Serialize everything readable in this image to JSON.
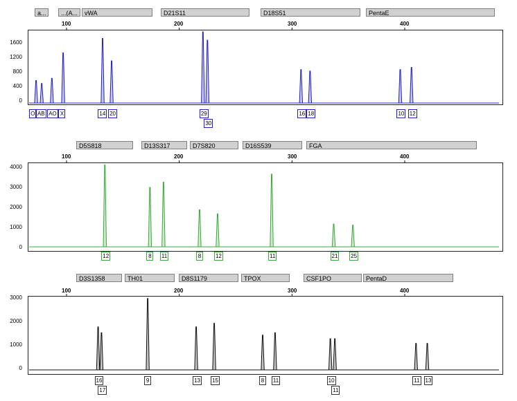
{
  "chart_data": [
    {
      "type": "line",
      "panel": "blue",
      "color": "#2020c0",
      "markers": [
        {
          "label": "a..."
        },
        {
          "label": "...(A..."
        },
        {
          "label": "vWA"
        },
        {
          "label": "D21S11"
        },
        {
          "label": "D18S51"
        },
        {
          "label": "PentaE"
        }
      ],
      "x_ticks": [
        "100",
        "200",
        "300",
        "400"
      ],
      "y_ticks": [
        "1600",
        "1200",
        "800",
        "400",
        "0"
      ],
      "ylim": [
        0,
        2000
      ],
      "xlim": [
        60,
        450
      ],
      "peaks": [
        {
          "x": 73,
          "y": 640
        },
        {
          "x": 78,
          "y": 560
        },
        {
          "x": 87,
          "y": 700
        },
        {
          "x": 97,
          "y": 1400
        },
        {
          "x": 132,
          "y": 1800
        },
        {
          "x": 140,
          "y": 1180
        },
        {
          "x": 221,
          "y": 1980
        },
        {
          "x": 225,
          "y": 1750
        },
        {
          "x": 308,
          "y": 940
        },
        {
          "x": 316,
          "y": 900
        },
        {
          "x": 396,
          "y": 940
        },
        {
          "x": 406,
          "y": 1000
        }
      ],
      "alleles": [
        {
          "label": "O",
          "x": 70,
          "row": 0
        },
        {
          "label": "AB",
          "x": 76,
          "row": 0
        },
        {
          "label": "AO",
          "x": 86,
          "row": 0
        },
        {
          "label": "X",
          "x": 96,
          "row": 0
        },
        {
          "label": "14",
          "x": 131,
          "row": 0
        },
        {
          "label": "20",
          "x": 140,
          "row": 0
        },
        {
          "label": "29",
          "x": 221,
          "row": 0
        },
        {
          "label": "30",
          "x": 225,
          "row": 1
        },
        {
          "label": "16",
          "x": 308,
          "row": 0
        },
        {
          "label": "18",
          "x": 316,
          "row": 0
        },
        {
          "label": "10",
          "x": 396,
          "row": 0
        },
        {
          "label": "12",
          "x": 406,
          "row": 0
        }
      ]
    },
    {
      "type": "line",
      "panel": "green",
      "color": "#3aa83a",
      "markers": [
        {
          "label": "D5S818"
        },
        {
          "label": "D13S317"
        },
        {
          "label": "D7S820"
        },
        {
          "label": "D16S539"
        },
        {
          "label": "FGA"
        }
      ],
      "x_ticks": [
        "100",
        "200",
        "300",
        "400"
      ],
      "y_ticks": [
        "4000",
        "3000",
        "2000",
        "1000",
        "0"
      ],
      "ylim": [
        0,
        4100
      ],
      "xlim": [
        60,
        450
      ],
      "peaks": [
        {
          "x": 134,
          "y": 4050
        },
        {
          "x": 174,
          "y": 2950
        },
        {
          "x": 186,
          "y": 3200
        },
        {
          "x": 218,
          "y": 1850
        },
        {
          "x": 234,
          "y": 1650
        },
        {
          "x": 282,
          "y": 3600
        },
        {
          "x": 337,
          "y": 1150
        },
        {
          "x": 354,
          "y": 1100
        }
      ],
      "alleles": [
        {
          "label": "12",
          "x": 134,
          "row": 0
        },
        {
          "label": "8",
          "x": 174,
          "row": 0
        },
        {
          "label": "11",
          "x": 186,
          "row": 0
        },
        {
          "label": "8",
          "x": 218,
          "row": 0
        },
        {
          "label": "12",
          "x": 234,
          "row": 0
        },
        {
          "label": "11",
          "x": 282,
          "row": 0
        },
        {
          "label": "21",
          "x": 337,
          "row": 0
        },
        {
          "label": "25",
          "x": 354,
          "row": 0
        }
      ]
    },
    {
      "type": "line",
      "panel": "black",
      "color": "#101010",
      "markers": [
        {
          "label": "D3S1358"
        },
        {
          "label": "TH01"
        },
        {
          "label": "D8S1179"
        },
        {
          "label": "TPOX"
        },
        {
          "label": "CSF1PO"
        },
        {
          "label": "PentaD"
        }
      ],
      "x_ticks": [
        "100",
        "200",
        "300",
        "400"
      ],
      "y_ticks": [
        "3000",
        "2000",
        "1000",
        "0"
      ],
      "ylim": [
        0,
        3100
      ],
      "xlim": [
        60,
        450
      ],
      "peaks": [
        {
          "x": 128,
          "y": 1850
        },
        {
          "x": 131,
          "y": 1600
        },
        {
          "x": 172,
          "y": 3050
        },
        {
          "x": 215,
          "y": 1850
        },
        {
          "x": 231,
          "y": 2000
        },
        {
          "x": 274,
          "y": 1500
        },
        {
          "x": 285,
          "y": 1600
        },
        {
          "x": 334,
          "y": 1350
        },
        {
          "x": 338,
          "y": 1350
        },
        {
          "x": 410,
          "y": 1150
        },
        {
          "x": 420,
          "y": 1150
        }
      ],
      "alleles": [
        {
          "label": "16",
          "x": 128,
          "row": 0
        },
        {
          "label": "17",
          "x": 131,
          "row": 1
        },
        {
          "label": "9",
          "x": 172,
          "row": 0
        },
        {
          "label": "13",
          "x": 215,
          "row": 0
        },
        {
          "label": "15",
          "x": 231,
          "row": 0
        },
        {
          "label": "8",
          "x": 274,
          "row": 0
        },
        {
          "label": "11",
          "x": 285,
          "row": 0
        },
        {
          "label": "10",
          "x": 334,
          "row": 0
        },
        {
          "label": "11",
          "x": 338,
          "row": 1
        },
        {
          "label": "11",
          "x": 410,
          "row": 0
        },
        {
          "label": "13",
          "x": 420,
          "row": 0
        }
      ]
    }
  ]
}
